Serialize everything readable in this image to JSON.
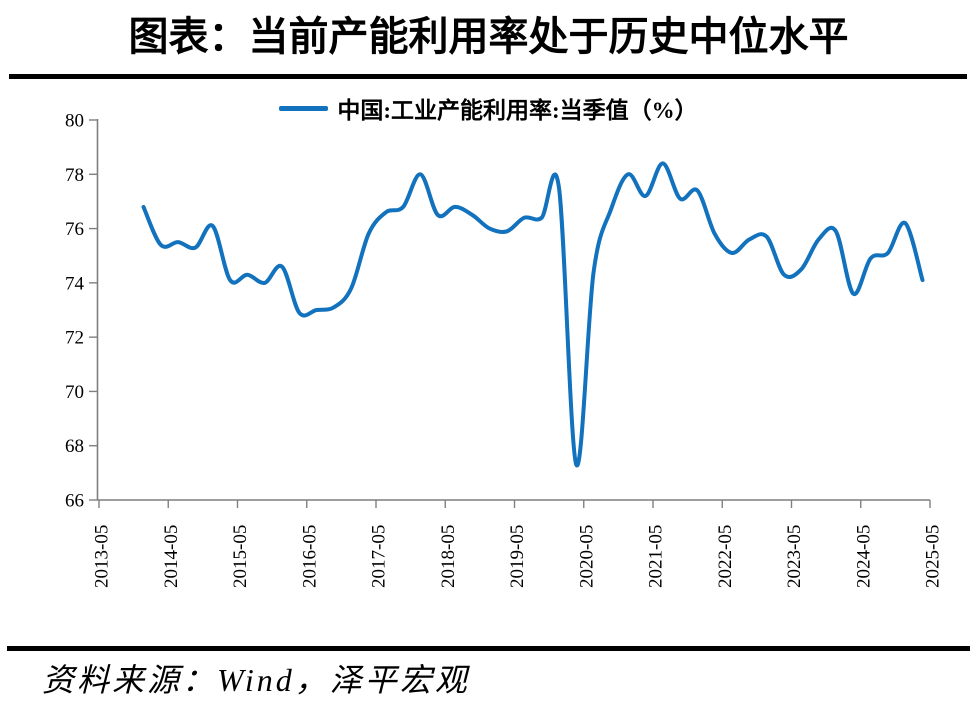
{
  "page": {
    "title": "图表：当前产能利用率处于历史中位水平",
    "source_note": "资料来源：Wind，泽平宏观"
  },
  "legend": {
    "label": "中国:工业产能利用率:当季值（%）"
  },
  "colors": {
    "line": "#1272BD",
    "axis": "#7f7f7f",
    "tick_label": "#000000",
    "divider": "#000000",
    "background": "#ffffff"
  },
  "chart_data": {
    "type": "line",
    "title": "图表：当前产能利用率处于历史中位水平",
    "legend_entries": [
      "中国:工业产能利用率:当季值（%）"
    ],
    "legend_position": "top",
    "grid": false,
    "unit": "%",
    "ylim": [
      66,
      80
    ],
    "yticks": [
      66,
      68,
      70,
      72,
      74,
      76,
      78,
      80
    ],
    "xtick_labels": [
      "2013-05",
      "2014-05",
      "2015-05",
      "2016-05",
      "2017-05",
      "2018-05",
      "2019-05",
      "2020-05",
      "2021-05",
      "2022-05",
      "2023-05",
      "2024-05",
      "2025-05"
    ],
    "x": [
      "2013-12",
      "2014-03",
      "2014-06",
      "2014-09",
      "2014-12",
      "2015-03",
      "2015-06",
      "2015-09",
      "2015-12",
      "2016-03",
      "2016-06",
      "2016-09",
      "2016-12",
      "2017-03",
      "2017-06",
      "2017-09",
      "2017-12",
      "2018-03",
      "2018-06",
      "2018-09",
      "2018-12",
      "2019-03",
      "2019-06",
      "2019-09",
      "2019-12",
      "2020-03",
      "2020-06",
      "2020-09",
      "2020-12",
      "2021-03",
      "2021-06",
      "2021-09",
      "2021-12",
      "2022-03",
      "2022-06",
      "2022-09",
      "2022-12",
      "2023-03",
      "2023-06",
      "2023-09",
      "2023-12",
      "2024-03",
      "2024-06",
      "2024-09",
      "2024-12",
      "2025-03"
    ],
    "series": [
      {
        "name": "中国:工业产能利用率:当季值（%）",
        "values": [
          76.8,
          75.4,
          75.5,
          75.3,
          76.1,
          74.1,
          74.3,
          74.0,
          74.6,
          72.9,
          73.0,
          73.1,
          73.8,
          75.8,
          76.6,
          76.8,
          78.0,
          76.5,
          76.8,
          76.5,
          76.0,
          75.9,
          76.4,
          76.4,
          77.5,
          67.3,
          74.4,
          76.7,
          78.0,
          77.2,
          78.4,
          77.1,
          77.4,
          75.8,
          75.1,
          75.6,
          75.7,
          74.3,
          74.5,
          75.6,
          75.9,
          73.6,
          74.9,
          75.1,
          76.2,
          74.1
        ]
      }
    ]
  }
}
